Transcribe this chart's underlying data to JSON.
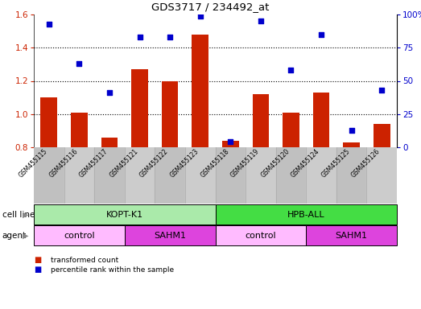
{
  "title": "GDS3717 / 234492_at",
  "samples": [
    "GSM455115",
    "GSM455116",
    "GSM455117",
    "GSM455121",
    "GSM455122",
    "GSM455123",
    "GSM455118",
    "GSM455119",
    "GSM455120",
    "GSM455124",
    "GSM455125",
    "GSM455126"
  ],
  "transformed_count": [
    1.1,
    1.01,
    0.86,
    1.27,
    1.2,
    1.48,
    0.84,
    1.12,
    1.01,
    1.13,
    0.83,
    0.94
  ],
  "percentile_rank": [
    93,
    63,
    41,
    83,
    83,
    99,
    4,
    95,
    58,
    85,
    13,
    43
  ],
  "bar_color": "#cc2200",
  "dot_color": "#0000cc",
  "ylim_left": [
    0.8,
    1.6
  ],
  "ylim_right": [
    0,
    100
  ],
  "yticks_left": [
    0.8,
    1.0,
    1.2,
    1.4,
    1.6
  ],
  "yticks_right": [
    0,
    25,
    50,
    75,
    100
  ],
  "cell_line_groups": [
    {
      "label": "KOPT-K1",
      "start": 0,
      "end": 6,
      "color": "#aaeaaa"
    },
    {
      "label": "HPB-ALL",
      "start": 6,
      "end": 12,
      "color": "#44dd44"
    }
  ],
  "agent_groups": [
    {
      "label": "control",
      "start": 0,
      "end": 3,
      "color": "#ffbbff"
    },
    {
      "label": "SAHM1",
      "start": 3,
      "end": 6,
      "color": "#dd44dd"
    },
    {
      "label": "control",
      "start": 6,
      "end": 9,
      "color": "#ffbbff"
    },
    {
      "label": "SAHM1",
      "start": 9,
      "end": 12,
      "color": "#dd44dd"
    }
  ],
  "legend_bar_label": "transformed count",
  "legend_dot_label": "percentile rank within the sample",
  "cell_line_label": "cell line",
  "agent_label": "agent",
  "tick_color_left": "#cc2200",
  "tick_color_right": "#0000cc",
  "grid_yticks": [
    1.0,
    1.2,
    1.4
  ],
  "xtick_bg": "#cccccc",
  "bg_color": "#ffffff"
}
